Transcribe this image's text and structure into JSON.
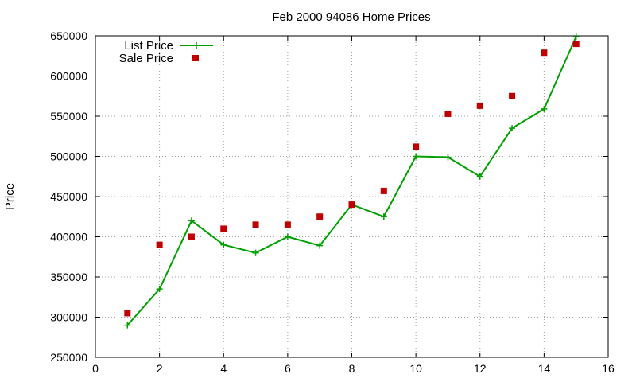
{
  "chart_data": {
    "type": "line",
    "title": "Feb 2000 94086 Home Prices",
    "xlabel": "",
    "ylabel": "Price",
    "xlim": [
      0,
      16
    ],
    "ylim": [
      250000,
      650000
    ],
    "xticks": [
      0,
      2,
      4,
      6,
      8,
      10,
      12,
      14,
      16
    ],
    "yticks": [
      250000,
      300000,
      350000,
      400000,
      450000,
      500000,
      550000,
      600000,
      650000
    ],
    "grid": true,
    "legend_position": "top-left",
    "series": [
      {
        "name": "List Price",
        "style": "line-points",
        "color": "#00a000",
        "marker": "plus",
        "x": [
          1,
          2,
          3,
          4,
          5,
          6,
          7,
          8,
          9,
          10,
          11,
          12,
          13,
          14,
          15
        ],
        "values": [
          290000,
          335000,
          420000,
          390000,
          380000,
          400000,
          389000,
          440000,
          425000,
          500000,
          499000,
          475000,
          535000,
          559000,
          649000
        ]
      },
      {
        "name": "Sale Price",
        "style": "points",
        "color": "#c00000",
        "marker": "square",
        "x": [
          1,
          2,
          3,
          4,
          5,
          6,
          7,
          8,
          9,
          10,
          11,
          12,
          13,
          14,
          15
        ],
        "values": [
          305000,
          390000,
          400000,
          410000,
          415000,
          415000,
          425000,
          440000,
          457000,
          512000,
          553000,
          563000,
          575000,
          629000,
          640000
        ]
      }
    ]
  }
}
